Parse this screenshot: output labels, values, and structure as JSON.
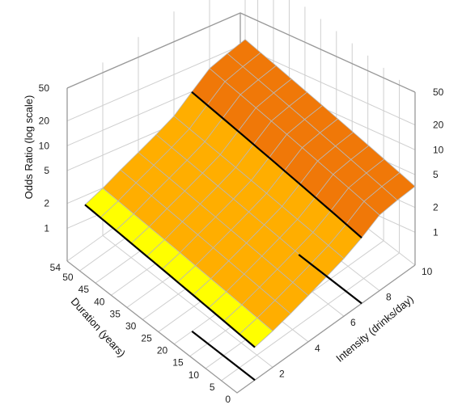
{
  "chart_data": {
    "type": "surface",
    "title": "",
    "zlabel": "Odds Ratio (log scale)",
    "xlabel": "Intensity (drinks/day)",
    "ylabel": "Duration (years)",
    "z_scale": "log",
    "z_ticks": [
      "1",
      "2",
      "5",
      "10",
      "20",
      "50"
    ],
    "z_tick_values": [
      1,
      2,
      5,
      10,
      20,
      50
    ],
    "x_ticks": [
      "2",
      "4",
      "6",
      "8",
      "10"
    ],
    "x_tick_values": [
      2,
      4,
      6,
      8,
      10
    ],
    "y_ticks": [
      "0",
      "5",
      "10",
      "15",
      "20",
      "25",
      "30",
      "35",
      "40",
      "45",
      "50",
      "54"
    ],
    "y_tick_values": [
      0,
      5,
      10,
      15,
      20,
      25,
      30,
      35,
      40,
      45,
      50,
      54
    ],
    "xlim": [
      0,
      10
    ],
    "ylim": [
      0,
      54
    ],
    "zlim": [
      0.4,
      50
    ],
    "threshold_lines_at_intensity": [
      1,
      7
    ],
    "surface_samples": {
      "duration_values": [
        0,
        54
      ],
      "intensity_values": [
        1,
        2,
        3,
        4,
        5,
        6,
        7,
        8,
        9,
        10
      ],
      "odds_ratio_at_duration_54": [
        1.35,
        1.5,
        1.75,
        2.0,
        2.3,
        2.7,
        3.7,
        5.0,
        5.3,
        5.5
      ],
      "odds_ratio_at_duration_0": [
        1.0,
        1.1,
        1.25,
        1.45,
        1.7,
        2.0,
        2.5,
        3.3,
        3.5,
        3.6
      ]
    },
    "colors": {
      "low": "#ffff00",
      "mid": "#ffae00",
      "high": "#f07808",
      "threshold_line": "#000000",
      "grid": "#cfcfcf",
      "axis": "#999999"
    },
    "grid": true
  }
}
